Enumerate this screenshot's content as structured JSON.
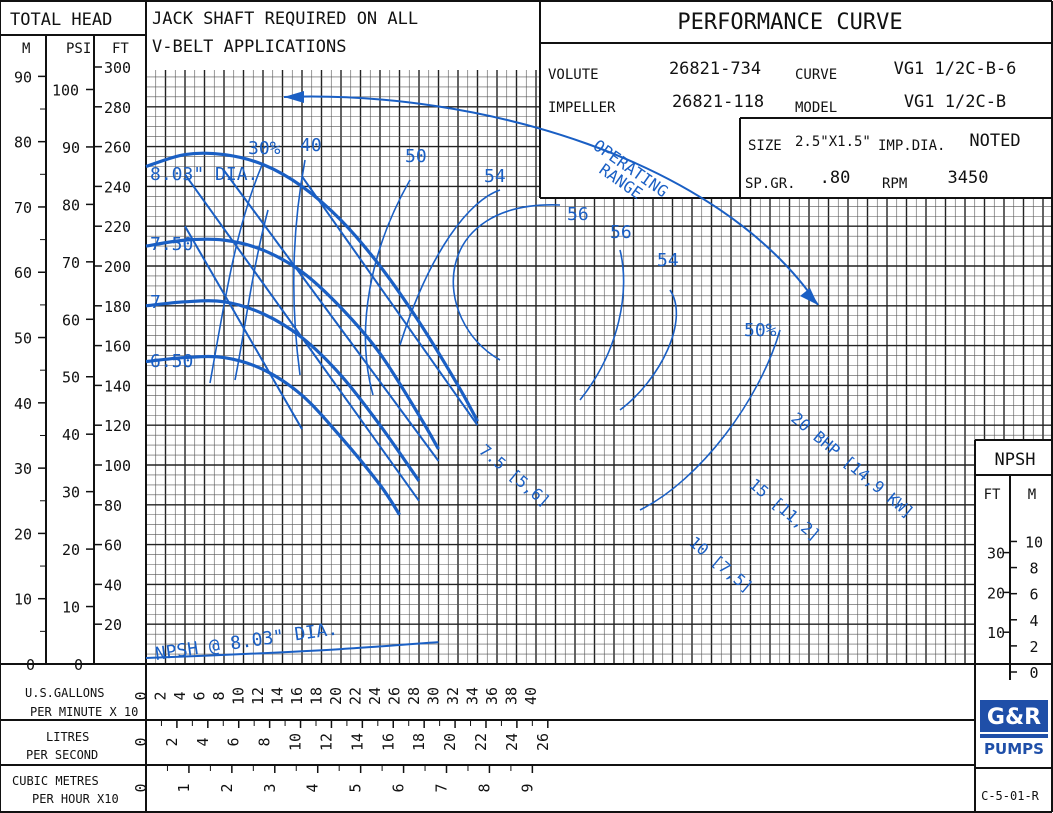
{
  "chart_data": {
    "type": "line",
    "title": "PERFORMANCE CURVE",
    "note": "JACK SHAFT REQUIRED ON ALL V-BELT APPLICATIONS",
    "specs": {
      "volute_label": "VOLUTE",
      "volute": "26821-734",
      "curve_label": "CURVE",
      "curve": "VG1 1/2C-B-6",
      "impeller_label": "IMPELLER",
      "impeller": "26821-118",
      "model_label": "MODEL",
      "model": "VG1 1/2C-B",
      "size_label": "SIZE",
      "size": "2.5\"X1.5\"",
      "impdia_label": "IMP.DIA.",
      "impdia": "NOTED",
      "spgr_label": "SP.GR.",
      "spgr": ".80",
      "rpm_label": "RPM",
      "rpm": "3450"
    },
    "axes": {
      "head_label": "TOTAL HEAD",
      "m_label": "M",
      "psi_label": "PSI",
      "ft_label": "FT",
      "gpm_label_1": "U.S.GALLONS",
      "gpm_label_2": "PER MINUTE X 10",
      "lps_label_1": "LITRES",
      "lps_label_2": "PER SECOND",
      "cmh_label_1": "CUBIC METRES",
      "cmh_label_2": "PER HOUR X10",
      "npsh_label": "NPSH",
      "npsh_ft_label": "FT",
      "npsh_m_label": "M",
      "ft_ticks": [
        "20",
        "40",
        "60",
        "80",
        "100",
        "120",
        "140",
        "160",
        "180",
        "200",
        "220",
        "240",
        "260",
        "280",
        "300"
      ],
      "psi_ticks": [
        "0",
        "10",
        "20",
        "30",
        "40",
        "50",
        "60",
        "70",
        "80",
        "90",
        "100"
      ],
      "m_ticks": [
        "0",
        "10",
        "20",
        "30",
        "40",
        "50",
        "60",
        "70",
        "80",
        "90"
      ],
      "gpm_ticks": [
        "0",
        "2",
        "4",
        "6",
        "8",
        "10",
        "12",
        "14",
        "16",
        "18",
        "20",
        "22",
        "24",
        "26",
        "28",
        "30",
        "32",
        "34",
        "36",
        "38",
        "40"
      ],
      "lps_ticks": [
        "0",
        "2",
        "4",
        "6",
        "8",
        "10",
        "12",
        "14",
        "16",
        "18",
        "20",
        "22",
        "24",
        "26"
      ],
      "cmh_ticks": [
        "0",
        "1",
        "2",
        "3",
        "4",
        "5",
        "6",
        "7",
        "8",
        "9"
      ],
      "npsh_ft_ticks": [
        "10",
        "20",
        "30"
      ],
      "npsh_m_ticks": [
        "0",
        "2",
        "4",
        "6",
        "8",
        "10"
      ],
      "xlim_gpm_x10": [
        0,
        42
      ],
      "ylim_ft": [
        0,
        300
      ]
    },
    "series": [
      {
        "name": "8.03\" DIA.",
        "x": [
          0,
          4,
          8,
          12,
          16,
          20,
          24,
          28,
          32,
          34
        ],
        "y": [
          250,
          256,
          256,
          251,
          240,
          223,
          200,
          172,
          140,
          122
        ]
      },
      {
        "name": "7.50",
        "x": [
          0,
          4,
          8,
          12,
          16,
          20,
          24,
          28,
          30
        ],
        "y": [
          210,
          213,
          213,
          208,
          197,
          179,
          156,
          125,
          108
        ]
      },
      {
        "name": "7",
        "x": [
          0,
          4,
          8,
          12,
          16,
          20,
          24,
          28
        ],
        "y": [
          180,
          182,
          182,
          176,
          164,
          145,
          120,
          92
        ]
      },
      {
        "name": "6.50",
        "x": [
          0,
          4,
          8,
          12,
          16,
          20,
          24,
          26
        ],
        "y": [
          152,
          154,
          154,
          148,
          135,
          114,
          90,
          75
        ]
      }
    ],
    "efficiency_labels": [
      "30%",
      "40",
      "50",
      "54",
      "56",
      "56",
      "54",
      "50%"
    ],
    "bhp_lines": [
      {
        "name": "7.5 [5,6]",
        "x": [
          4,
          16
        ],
        "y": [
          220,
          118
        ]
      },
      {
        "name": "10 [7,5]",
        "x": [
          4,
          28
        ],
        "y": [
          246,
          82
        ]
      },
      {
        "name": "15 [11,2]",
        "x": [
          8,
          30
        ],
        "y": [
          248,
          102
        ]
      },
      {
        "name": "20 BHP [14,9 KW]",
        "x": [
          16,
          34
        ],
        "y": [
          245,
          120
        ]
      }
    ],
    "npsh_curve": {
      "name": "NPSH @ 8.03\" DIA.",
      "x": [
        0,
        10,
        20,
        30
      ],
      "y": [
        3,
        5,
        7.5,
        11
      ]
    },
    "operating_range_label": "OPERATING RANGE",
    "labels": {
      "dia_803": "8.03\" DIA.",
      "dia_750": "7.50",
      "dia_7": "7",
      "dia_650": "6.50",
      "npsh_curve": "NPSH @ 8.03\" DIA."
    },
    "doc_code": "C-5-01-R",
    "logo_text": "GORMAN-RUPP PUMPS",
    "grid": true,
    "line_color": "#1a5fc4"
  }
}
